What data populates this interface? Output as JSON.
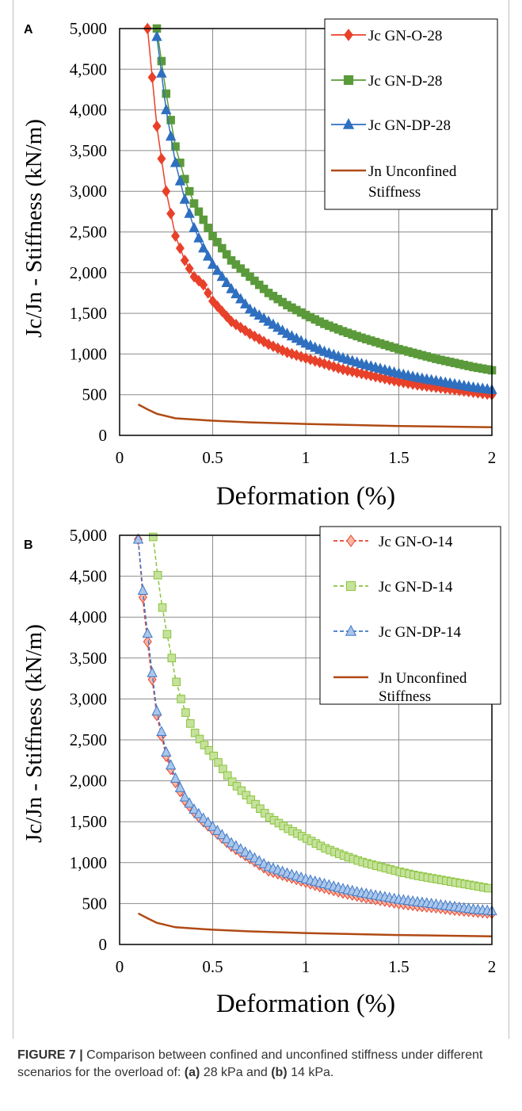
{
  "chart_data": [
    {
      "type": "scatter",
      "panel_label": "A",
      "xlabel": "Deformation (%)",
      "ylabel": "Jc/Jn - Stiffness (kN/m)",
      "xlim": [
        0,
        2
      ],
      "ylim": [
        0,
        5000
      ],
      "xticks": [
        "0",
        "0.5",
        "1",
        "1.5",
        "2"
      ],
      "yticks": [
        "0",
        "500",
        "1,000",
        "1,500",
        "2,000",
        "2,500",
        "3,000",
        "3,500",
        "4,000",
        "4,500",
        "5,000"
      ],
      "grid": true,
      "legend_position": "top-right",
      "series": [
        {
          "name": "Jc GN-O-28",
          "marker": "diamond",
          "line": "solid",
          "color": "#e8412a",
          "x": [
            0.15,
            0.2,
            0.25,
            0.3,
            0.35,
            0.4,
            0.45,
            0.5,
            0.6,
            0.7,
            0.8,
            0.9,
            1.0,
            1.1,
            1.2,
            1.3,
            1.4,
            1.5,
            1.6,
            1.7,
            1.8,
            1.9,
            2.0
          ],
          "y": [
            5000,
            3800,
            3000,
            2450,
            2150,
            1950,
            1850,
            1650,
            1400,
            1250,
            1120,
            1020,
            950,
            880,
            810,
            760,
            710,
            660,
            620,
            590,
            560,
            530,
            500
          ]
        },
        {
          "name": "Jc GN-D-28",
          "marker": "square",
          "line": "solid",
          "color": "#5a9a3a",
          "x": [
            0.2,
            0.25,
            0.3,
            0.35,
            0.4,
            0.45,
            0.5,
            0.6,
            0.7,
            0.8,
            0.9,
            1.0,
            1.1,
            1.2,
            1.3,
            1.4,
            1.5,
            1.6,
            1.7,
            1.8,
            1.9,
            2.0
          ],
          "y": [
            5000,
            4200,
            3550,
            3150,
            2850,
            2650,
            2450,
            2150,
            1950,
            1750,
            1600,
            1480,
            1370,
            1280,
            1200,
            1130,
            1060,
            1000,
            940,
            890,
            840,
            800
          ]
        },
        {
          "name": "Jc GN-DP-28",
          "marker": "triangle",
          "line": "solid",
          "color": "#2e6fc0",
          "x": [
            0.2,
            0.25,
            0.3,
            0.35,
            0.4,
            0.45,
            0.5,
            0.6,
            0.7,
            0.8,
            0.9,
            1.0,
            1.1,
            1.2,
            1.3,
            1.4,
            1.5,
            1.6,
            1.7,
            1.8,
            1.9,
            2.0
          ],
          "y": [
            4900,
            4000,
            3350,
            2900,
            2550,
            2300,
            2100,
            1800,
            1550,
            1400,
            1250,
            1130,
            1030,
            950,
            880,
            820,
            760,
            710,
            670,
            630,
            590,
            560
          ]
        },
        {
          "name": "Jn Unconfined Stiffness",
          "marker": "none",
          "line": "solid",
          "color": "#b04a14",
          "x": [
            0.1,
            0.15,
            0.2,
            0.3,
            0.4,
            0.5,
            0.7,
            1.0,
            1.5,
            2.0
          ],
          "y": [
            380,
            320,
            265,
            210,
            195,
            180,
            160,
            140,
            115,
            100
          ]
        }
      ]
    },
    {
      "type": "scatter",
      "panel_label": "B",
      "xlabel": "Deformation (%)",
      "ylabel": "Jc/Jn - Stiffness (kN/m)",
      "xlim": [
        0,
        2
      ],
      "ylim": [
        0,
        5000
      ],
      "xticks": [
        "0",
        "0.5",
        "1",
        "1.5",
        "2"
      ],
      "yticks": [
        "0",
        "500",
        "1,000",
        "1,500",
        "2,000",
        "2,500",
        "3,000",
        "3,500",
        "4,000",
        "4,500",
        "5,000"
      ],
      "grid": true,
      "legend_position": "top-right",
      "series": [
        {
          "name": "Jc GN-O-14",
          "marker": "diamond",
          "line": "dashed",
          "color": "#e8412a",
          "fill": "#f6b7a8",
          "x": [
            0.1,
            0.13,
            0.16,
            0.2,
            0.25,
            0.3,
            0.35,
            0.4,
            0.45,
            0.5,
            0.6,
            0.7,
            0.8,
            0.9,
            1.0,
            1.1,
            1.2,
            1.3,
            1.4,
            1.5,
            1.6,
            1.7,
            1.8,
            1.9,
            2.0
          ],
          "y": [
            4950,
            4100,
            3500,
            2800,
            2300,
            1980,
            1760,
            1620,
            1500,
            1400,
            1200,
            1050,
            900,
            830,
            760,
            690,
            630,
            580,
            540,
            500,
            470,
            450,
            420,
            400,
            380
          ]
        },
        {
          "name": "Jc GN-D-14",
          "marker": "square",
          "line": "dashed",
          "color": "#8ac43c",
          "fill": "#c5e29c",
          "x": [
            0.18,
            0.2,
            0.22,
            0.25,
            0.28,
            0.3,
            0.33,
            0.36,
            0.4,
            0.45,
            0.5,
            0.6,
            0.7,
            0.8,
            0.9,
            1.0,
            1.1,
            1.2,
            1.3,
            1.4,
            1.5,
            1.6,
            1.7,
            1.8,
            1.9,
            2.0
          ],
          "y": [
            4980,
            4600,
            4250,
            3850,
            3500,
            3250,
            3000,
            2800,
            2600,
            2450,
            2320,
            2000,
            1780,
            1560,
            1420,
            1300,
            1180,
            1090,
            1010,
            950,
            890,
            840,
            800,
            760,
            720,
            680
          ]
        },
        {
          "name": "Jc GN-DP-14",
          "marker": "triangle",
          "line": "dashed",
          "color": "#3f78c8",
          "fill": "#aac6ea",
          "x": [
            0.1,
            0.13,
            0.16,
            0.2,
            0.25,
            0.3,
            0.35,
            0.4,
            0.45,
            0.5,
            0.6,
            0.7,
            0.8,
            0.9,
            1.0,
            1.1,
            1.2,
            1.3,
            1.4,
            1.5,
            1.6,
            1.7,
            1.8,
            1.9,
            2.0
          ],
          "y": [
            4950,
            4200,
            3600,
            2850,
            2350,
            2030,
            1800,
            1650,
            1540,
            1440,
            1240,
            1090,
            950,
            870,
            800,
            740,
            680,
            630,
            590,
            550,
            520,
            490,
            460,
            430,
            410
          ]
        },
        {
          "name": "Jn Unconfined Stiffness",
          "marker": "none",
          "line": "solid",
          "color": "#b04a14",
          "x": [
            0.1,
            0.15,
            0.2,
            0.3,
            0.4,
            0.5,
            0.7,
            1.0,
            1.5,
            2.0
          ],
          "y": [
            380,
            320,
            265,
            210,
            195,
            180,
            160,
            140,
            115,
            100
          ]
        }
      ]
    }
  ],
  "legends": [
    {
      "items": [
        "Jc GN-O-28",
        "Jc GN-D-28",
        "Jc GN-DP-28",
        "Jn Unconfined",
        "Stiffness"
      ]
    },
    {
      "items": [
        "Jc GN-O-14",
        "Jc GN-D-14",
        "Jc GN-DP-14",
        "Jn Unconfined",
        "Stiffness"
      ]
    }
  ],
  "caption": {
    "label": "FIGURE 7 |",
    "text_1": " Comparison between confined and unconfined stiffness under different scenarios for the overload of: ",
    "a": "(a)",
    "text_2": " 28 kPa and ",
    "b": "(b)",
    "text_3": " 14 kPa."
  }
}
